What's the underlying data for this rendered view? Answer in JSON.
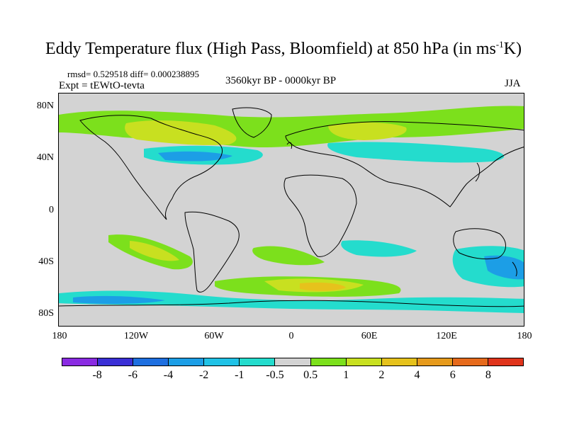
{
  "title": {
    "main": "Eddy Temperature flux (High Pass, Bloomfield) at 850 hPa (in ms",
    "sup": "-1",
    "end": "K)"
  },
  "stats": "rmsd= 0.529518 diff= 0.000238895",
  "experiment": "Expt = tEWtO-tevta",
  "period": "3560kyr BP - 0000kyr BP",
  "season": "JJA",
  "lat_labels": [
    "80N",
    "40N",
    "0",
    "40S",
    "80S"
  ],
  "lon_labels": [
    "180",
    "120W",
    "60W",
    "0",
    "60E",
    "120E",
    "180"
  ],
  "colorbar": {
    "labels": [
      "-8",
      "-6",
      "-4",
      "-2",
      "-1",
      "-0.5",
      "0.5",
      "1",
      "2",
      "4",
      "6",
      "8"
    ],
    "colors": [
      "#8a2be2",
      "#3a2fd6",
      "#1e6fe0",
      "#1c9ee6",
      "#20c2e6",
      "#24dccd",
      "#d3d3d3",
      "#7ce01c",
      "#c8e020",
      "#e6c21c",
      "#e69a1c",
      "#e66a1c",
      "#e0341c"
    ]
  },
  "field_colors": {
    "land_background": "#d3d3d3",
    "positive_1": "#7ce01c",
    "positive_2": "#c8e020",
    "positive_3": "#e6c21c",
    "negative_1": "#24dccd",
    "negative_2": "#1c9ee6"
  }
}
